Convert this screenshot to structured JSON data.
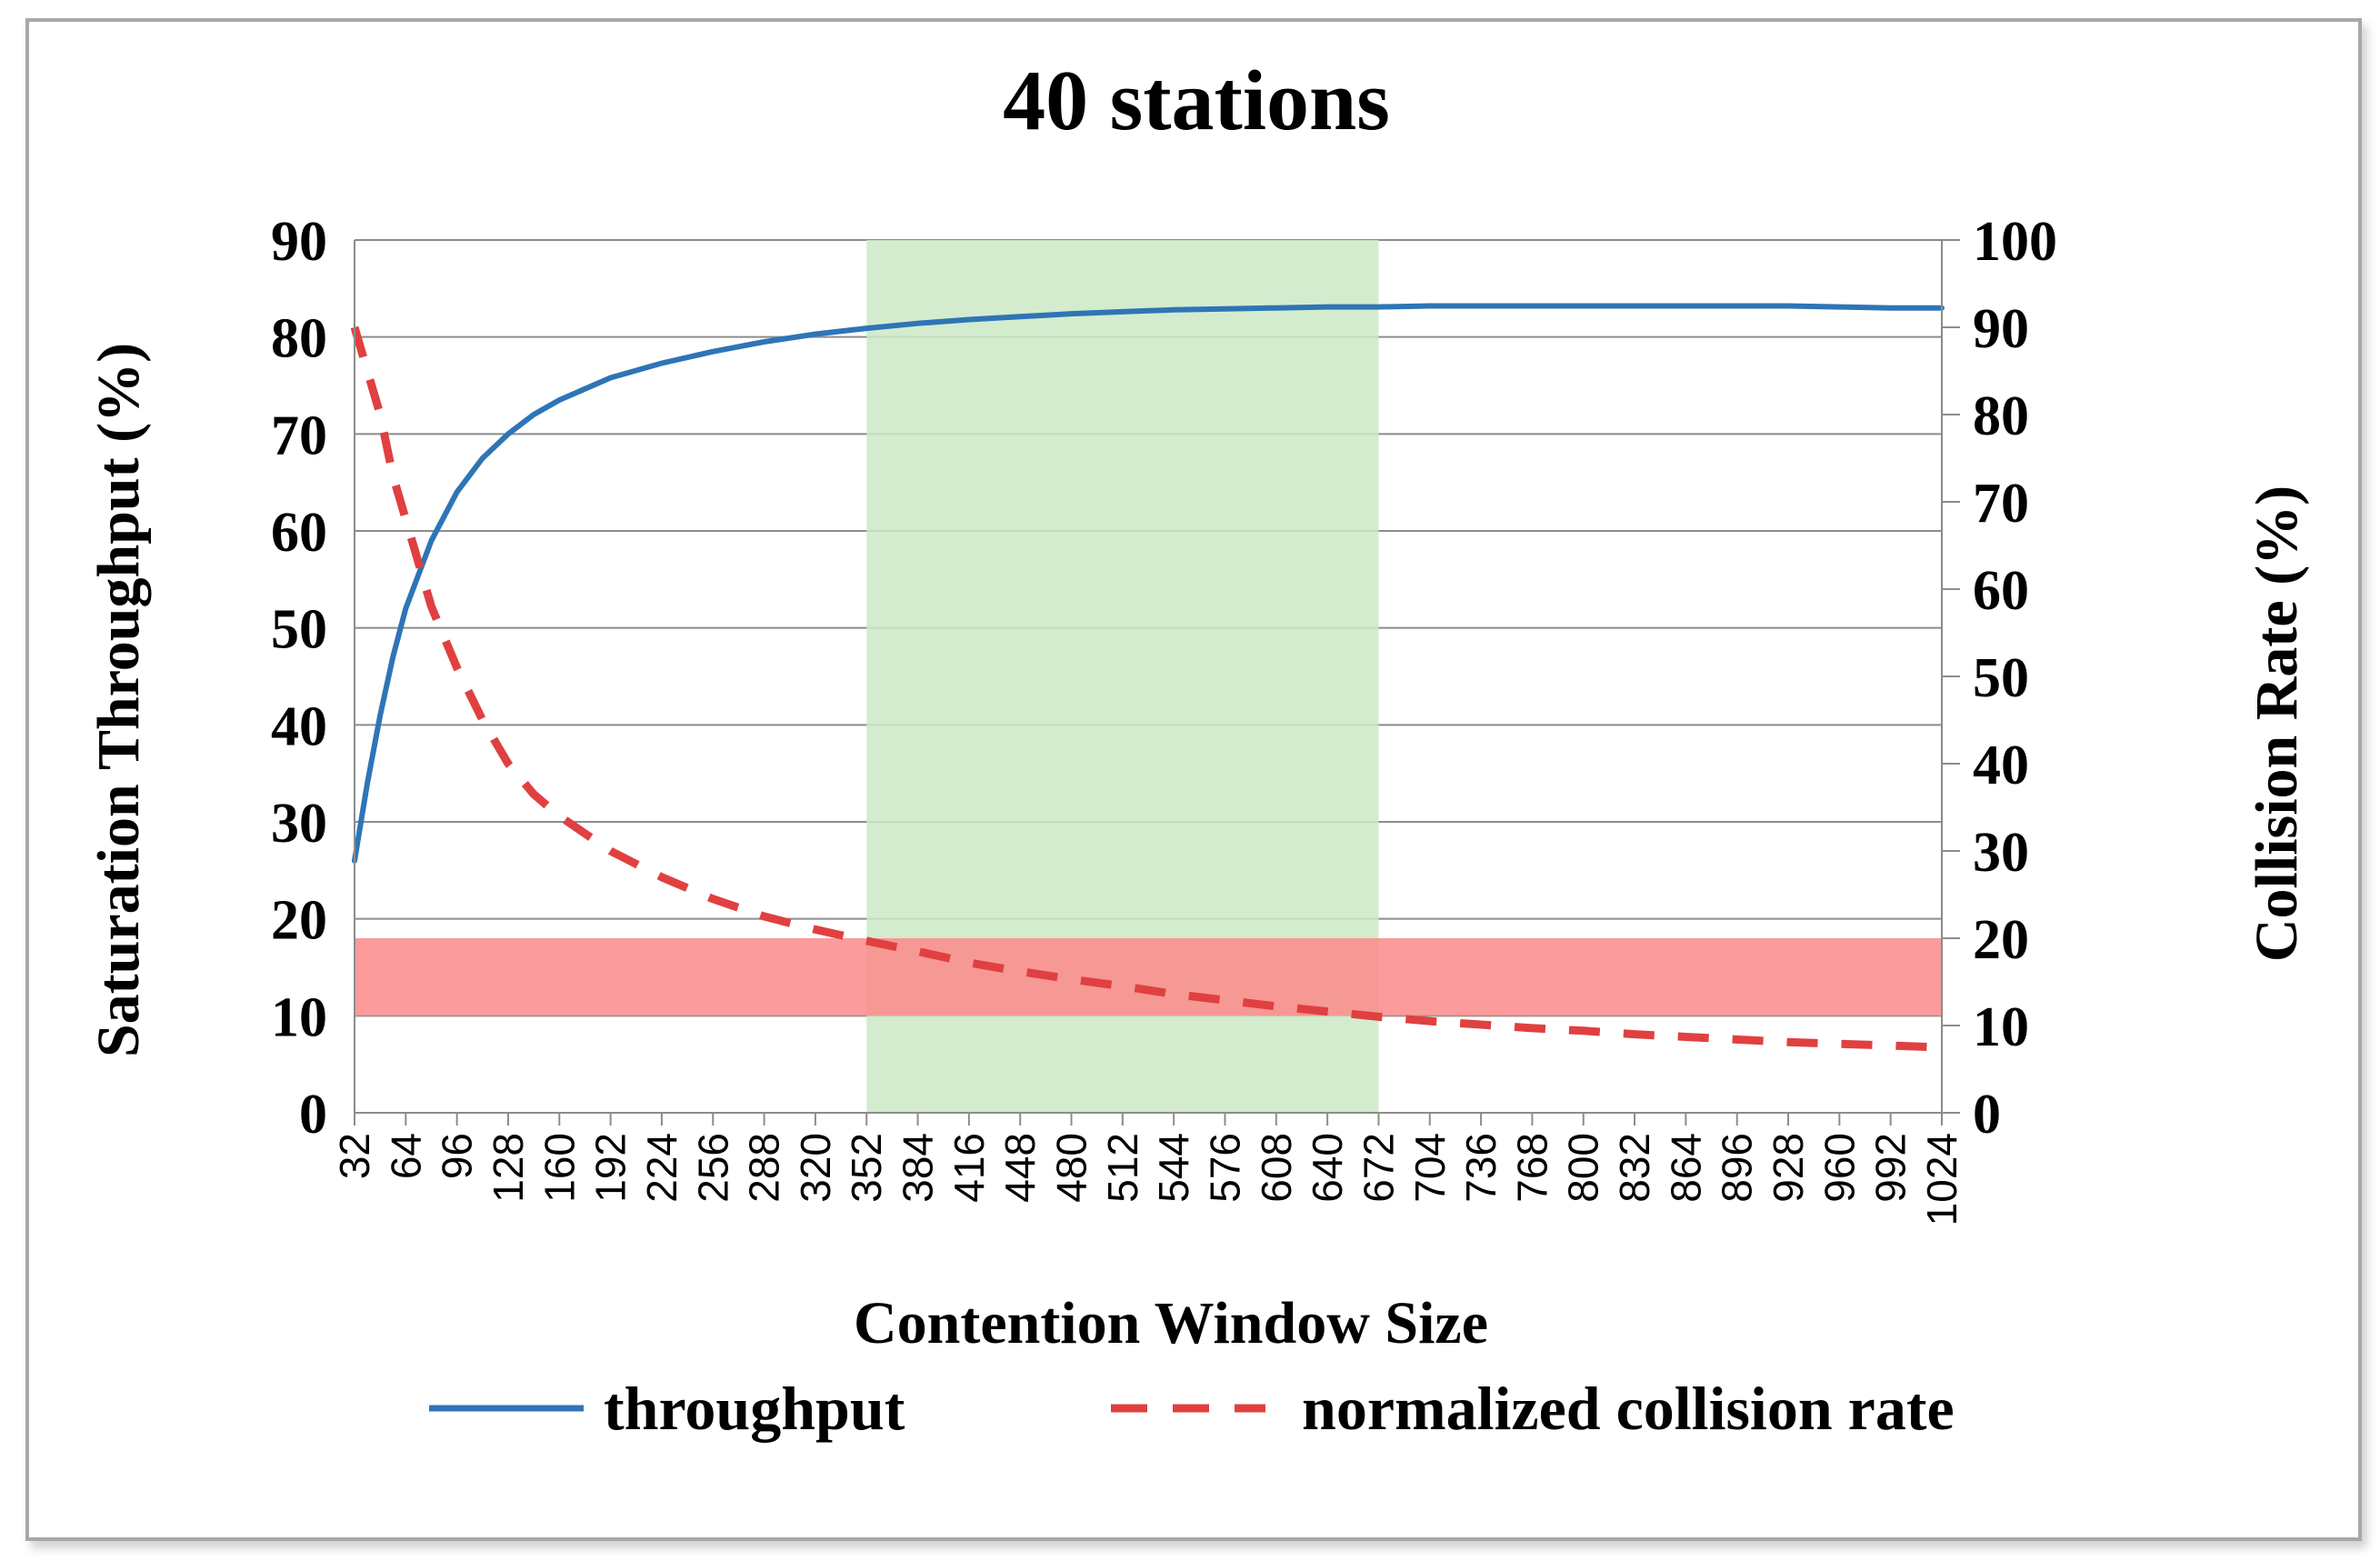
{
  "chart_data": {
    "type": "line",
    "title": "40 stations",
    "xlabel": "Contention Window Size",
    "ylabel_left": "Saturation Throughput (%)",
    "ylabel_right": "Collision Rate (%)",
    "x_ticks": [
      32,
      64,
      96,
      128,
      160,
      192,
      224,
      256,
      288,
      320,
      352,
      384,
      416,
      448,
      480,
      512,
      544,
      576,
      608,
      640,
      672,
      704,
      736,
      768,
      800,
      832,
      864,
      896,
      928,
      960,
      992,
      1024
    ],
    "xlim": [
      32,
      1024
    ],
    "ylim_left": [
      0,
      90
    ],
    "ylim_right": [
      0,
      100
    ],
    "y_ticks_left": [
      0,
      10,
      20,
      30,
      40,
      50,
      60,
      70,
      80,
      90
    ],
    "y_ticks_right": [
      0,
      10,
      20,
      30,
      40,
      50,
      60,
      70,
      80,
      90,
      100
    ],
    "grid": "horizontal",
    "legend_position": "bottom",
    "series": [
      {
        "name": "throughput",
        "axis": "left",
        "color": "#2e75b6",
        "style": "solid",
        "x": [
          32,
          40,
          48,
          56,
          64,
          80,
          96,
          112,
          128,
          144,
          160,
          192,
          224,
          256,
          288,
          320,
          352,
          384,
          416,
          448,
          480,
          512,
          544,
          576,
          608,
          640,
          672,
          704,
          736,
          768,
          800,
          832,
          864,
          896,
          928,
          960,
          992,
          1024
        ],
        "values": [
          26,
          34,
          41,
          47,
          52,
          59,
          64,
          67.5,
          70,
          72,
          73.5,
          75.8,
          77.3,
          78.5,
          79.5,
          80.3,
          80.9,
          81.4,
          81.8,
          82.1,
          82.4,
          82.6,
          82.8,
          82.9,
          83.0,
          83.1,
          83.1,
          83.2,
          83.2,
          83.2,
          83.2,
          83.2,
          83.2,
          83.2,
          83.2,
          83.1,
          83.0,
          83.0
        ]
      },
      {
        "name": "normalized collision rate",
        "axis": "right",
        "color": "#e04040",
        "style": "dashed",
        "x": [
          32,
          40,
          48,
          56,
          64,
          80,
          96,
          112,
          128,
          144,
          160,
          192,
          224,
          256,
          288,
          320,
          352,
          384,
          416,
          448,
          480,
          512,
          544,
          576,
          608,
          640,
          672,
          704,
          736,
          768,
          800,
          832,
          864,
          896,
          928,
          960,
          992,
          1024
        ],
        "values": [
          90,
          85,
          80,
          73,
          68,
          58,
          51,
          45,
          40,
          36.5,
          34,
          30,
          27,
          24.5,
          22.5,
          21,
          19.7,
          18.5,
          17.2,
          16.2,
          15.3,
          14.5,
          13.6,
          12.9,
          12.2,
          11.6,
          11,
          10.5,
          10.1,
          9.7,
          9.4,
          9.0,
          8.7,
          8.4,
          8.1,
          7.9,
          7.7,
          7.5
        ]
      }
    ],
    "highlight_regions": [
      {
        "orientation": "vertical",
        "from": 352,
        "to": 672,
        "color": "#cde9c6"
      },
      {
        "orientation": "horizontal",
        "axis": "left",
        "from": 10,
        "to": 18,
        "color": "#fb8a8a"
      }
    ]
  }
}
